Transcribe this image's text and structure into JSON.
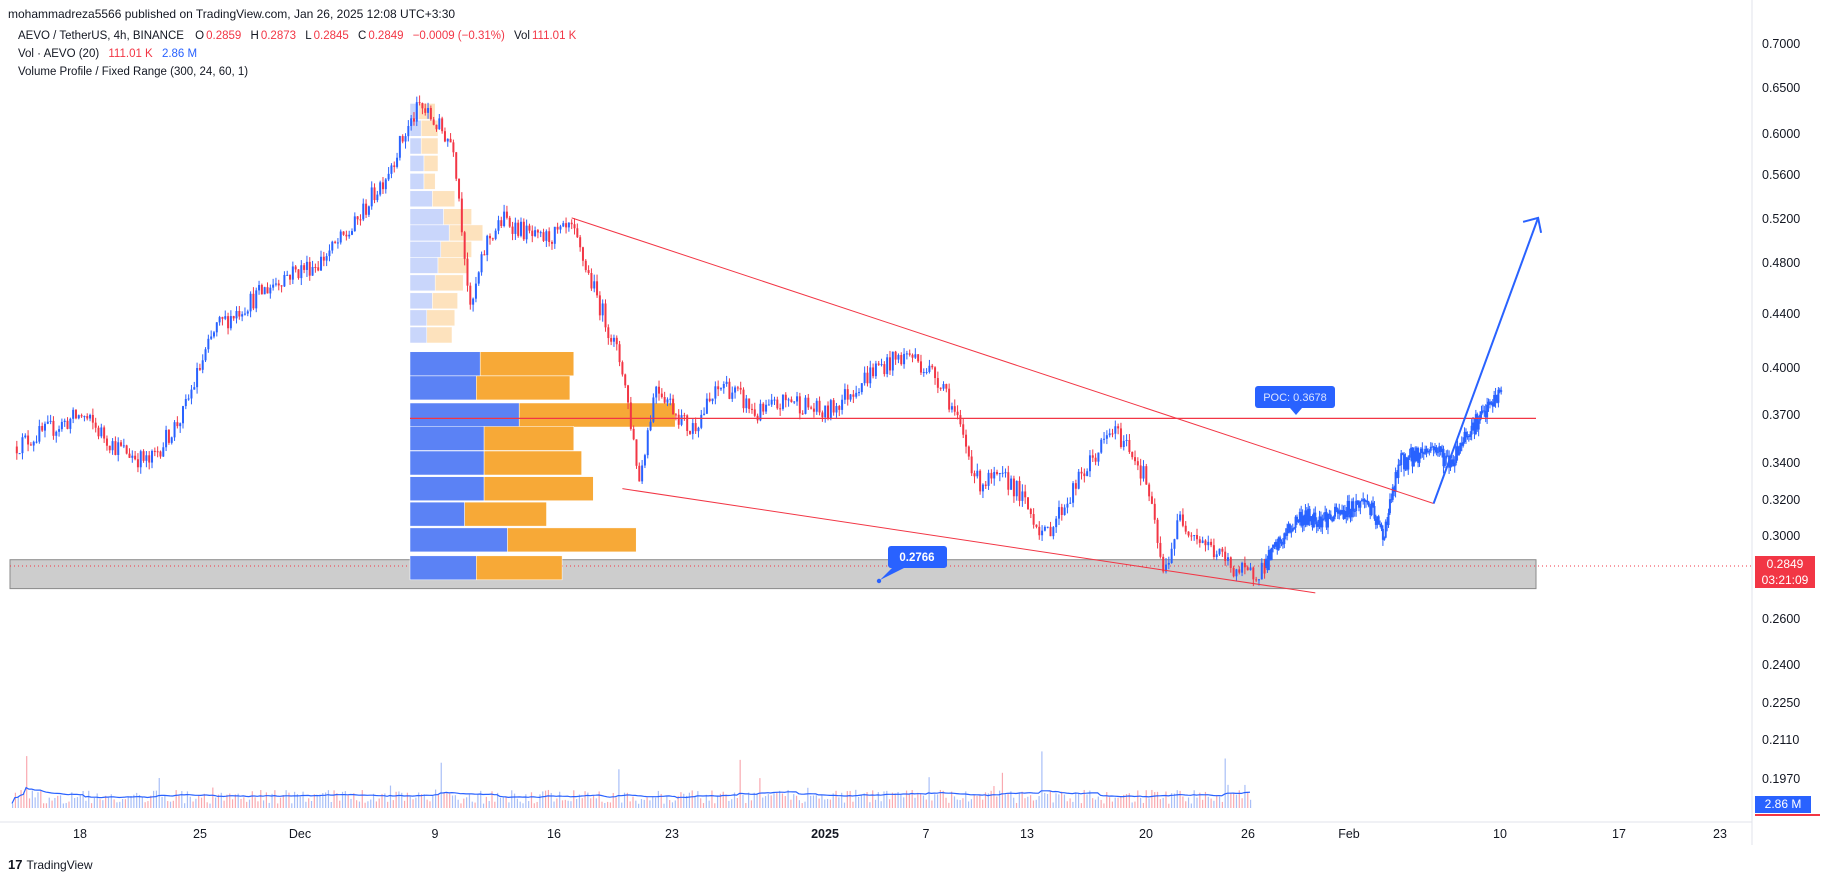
{
  "header": {
    "published_by": "mohammadreza5566 published on TradingView.com, Jan 26, 2025 12:08 UTC+3:30"
  },
  "legend": {
    "symbol": "AEVO / TetherUS, 4h, BINANCE",
    "open_label": "O",
    "open": "0.2859",
    "high_label": "H",
    "high": "0.2873",
    "low_label": "L",
    "low": "0.2845",
    "close_label": "C",
    "close": "0.2849",
    "change": "−0.0009 (−0.31%)",
    "vol_label": "Vol",
    "vol": "111.01 K",
    "vol_indicator": "Vol · AEVO (20)",
    "vol_value": "111.01 K",
    "vol_ma": "2.86 M",
    "vp_indicator": "Volume Profile / Fixed Range (300, 24, 60, 1)"
  },
  "price_scale": {
    "labels": [
      "0.7000",
      "0.6500",
      "0.6000",
      "0.5600",
      "0.5200",
      "0.4800",
      "0.4400",
      "0.4000",
      "0.3700",
      "0.3400",
      "0.3200",
      "0.3000",
      "0.2849",
      "0.2600",
      "0.2400",
      "0.2250",
      "0.2110",
      "0.1970"
    ],
    "last_price": "0.2849",
    "countdown": "03:21:09",
    "vol_ma_tag": "2.86 M"
  },
  "time_axis": [
    "18",
    "25",
    "Dec",
    "9",
    "16",
    "23",
    "2025",
    "7",
    "13",
    "20",
    "26",
    "Feb",
    "10",
    "17",
    "23"
  ],
  "annotations": {
    "poc_label": "POC: 0.3678",
    "support_label": "0.2766"
  },
  "footer": {
    "brand": "TradingView"
  },
  "colors": {
    "up": "#2962ff",
    "down": "#f23645",
    "vp_up": "#5b82f5",
    "vp_down": "#f7a937",
    "vp_up_light": "#c9d6fb",
    "vp_down_light": "#fde2bd",
    "zone": "#c8c8c8",
    "projection": "#2962ff"
  },
  "chart_data": {
    "type": "candlestick",
    "title": "AEVO / TetherUS, 4h, BINANCE",
    "x_ticks": [
      "18",
      "25",
      "Dec",
      "9",
      "16",
      "23",
      "2025",
      "7",
      "13",
      "20",
      "26",
      "Feb",
      "10",
      "17",
      "23"
    ],
    "ylim": [
      0.19,
      0.71
    ],
    "y_scale": "log",
    "series": [
      {
        "name": "AEVO / TetherUS",
        "points": [
          [
            "Nov 13",
            0.35
          ],
          [
            "Nov 15",
            0.36
          ],
          [
            "Nov 17",
            0.37
          ],
          [
            "Nov 19",
            0.35
          ],
          [
            "Nov 21",
            0.34
          ],
          [
            "Nov 23",
            0.37
          ],
          [
            "Nov 25",
            0.43
          ],
          [
            "Nov 27",
            0.45
          ],
          [
            "Nov 29",
            0.47
          ],
          [
            "Dec 1",
            0.48
          ],
          [
            "Dec 3",
            0.51
          ],
          [
            "Dec 5",
            0.56
          ],
          [
            "Dec 7",
            0.63
          ],
          [
            "Dec 8",
            0.61
          ],
          [
            "Dec 9",
            0.59
          ],
          [
            "Dec 10",
            0.44
          ],
          [
            "Dec 11",
            0.5
          ],
          [
            "Dec 12",
            0.52
          ],
          [
            "Dec 14",
            0.5
          ],
          [
            "Dec 16",
            0.51
          ],
          [
            "Dec 17",
            0.47
          ],
          [
            "Dec 19",
            0.4
          ],
          [
            "Dec 20",
            0.33
          ],
          [
            "Dec 21",
            0.39
          ],
          [
            "Dec 23",
            0.36
          ],
          [
            "Dec 25",
            0.39
          ],
          [
            "Dec 27",
            0.37
          ],
          [
            "Dec 29",
            0.38
          ],
          [
            "Dec 31",
            0.37
          ],
          [
            "Jan 3",
            0.4
          ],
          [
            "Jan 5",
            0.41
          ],
          [
            "Jan 7",
            0.39
          ],
          [
            "Jan 9",
            0.33
          ],
          [
            "Jan 11",
            0.33
          ],
          [
            "Jan 13",
            0.3
          ],
          [
            "Jan 15",
            0.33
          ],
          [
            "Jan 17",
            0.36
          ],
          [
            "Jan 18",
            0.35
          ],
          [
            "Jan 19",
            0.33
          ],
          [
            "Jan 20",
            0.28
          ],
          [
            "Jan 21",
            0.31
          ],
          [
            "Jan 22",
            0.3
          ],
          [
            "Jan 24",
            0.285
          ],
          [
            "Jan 25",
            0.28
          ],
          [
            "Jan 26",
            0.285
          ]
        ]
      },
      {
        "name": "Projection",
        "points": [
          [
            "Jan 26",
            0.285
          ],
          [
            "Jan 28",
            0.31
          ],
          [
            "Jan 30",
            0.31
          ],
          [
            "Feb 1",
            0.32
          ],
          [
            "Feb 2",
            0.3
          ],
          [
            "Feb 3",
            0.34
          ],
          [
            "Feb 5",
            0.35
          ],
          [
            "Feb 6",
            0.34
          ],
          [
            "Feb 7",
            0.36
          ],
          [
            "Feb 8",
            0.37
          ],
          [
            "Feb 9",
            0.385
          ]
        ]
      }
    ],
    "volume_profile": {
      "poc": 0.3678,
      "rows": [
        {
          "price": 0.624,
          "up": 3,
          "down": 6
        },
        {
          "price": 0.606,
          "up": 4,
          "down": 6
        },
        {
          "price": 0.588,
          "up": 4,
          "down": 6
        },
        {
          "price": 0.571,
          "up": 5,
          "down": 5
        },
        {
          "price": 0.554,
          "up": 5,
          "down": 4
        },
        {
          "price": 0.538,
          "up": 8,
          "down": 8
        },
        {
          "price": 0.522,
          "up": 12,
          "down": 10
        },
        {
          "price": 0.507,
          "up": 14,
          "down": 12
        },
        {
          "price": 0.492,
          "up": 11,
          "down": 11
        },
        {
          "price": 0.478,
          "up": 10,
          "down": 11
        },
        {
          "price": 0.464,
          "up": 9,
          "down": 10
        },
        {
          "price": 0.45,
          "up": 8,
          "down": 9
        },
        {
          "price": 0.437,
          "up": 6,
          "down": 10
        },
        {
          "price": 0.424,
          "up": 6,
          "down": 9
        },
        {
          "price": 0.403,
          "up": 18,
          "down": 24
        },
        {
          "price": 0.387,
          "up": 17,
          "down": 24
        },
        {
          "price": 0.37,
          "up": 28,
          "down": 40
        },
        {
          "price": 0.355,
          "up": 19,
          "down": 23
        },
        {
          "price": 0.34,
          "up": 19,
          "down": 25
        },
        {
          "price": 0.326,
          "up": 19,
          "down": 28
        },
        {
          "price": 0.312,
          "up": 14,
          "down": 21
        },
        {
          "price": 0.298,
          "up": 25,
          "down": 33
        },
        {
          "price": 0.284,
          "up": 17,
          "down": 22
        }
      ]
    },
    "lines": {
      "upper_trendline": [
        [
          "Dec 16",
          0.521
        ],
        [
          "Feb 5",
          0.318
        ]
      ],
      "lower_trendline": [
        [
          "Dec 19",
          0.326
        ],
        [
          "Jan 29",
          0.272
        ]
      ],
      "support_zone": [
        0.274,
        0.288
      ],
      "target_arrow": [
        [
          "Feb 5",
          0.318
        ],
        [
          "Feb 10",
          0.521
        ]
      ]
    },
    "volume": {
      "ma_label": "2.86 M"
    }
  }
}
